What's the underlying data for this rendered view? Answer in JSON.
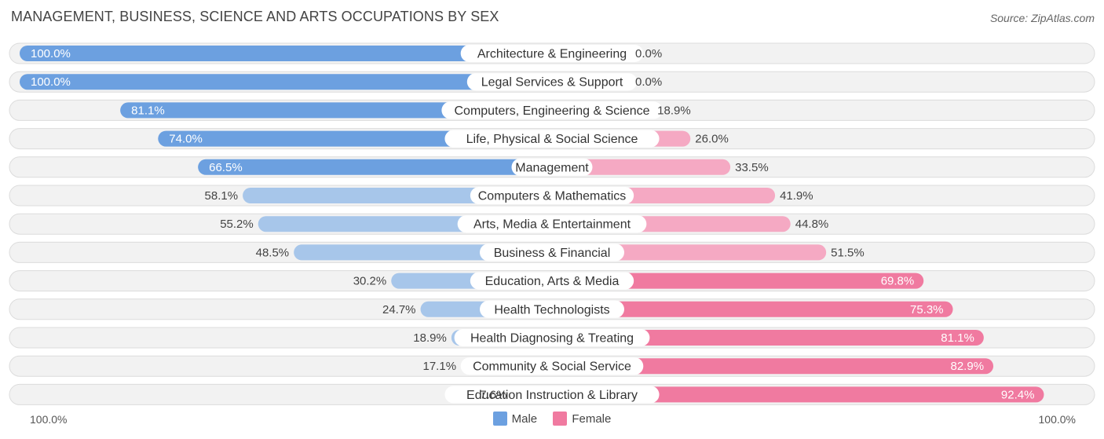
{
  "title": "MANAGEMENT, BUSINESS, SCIENCE AND ARTS OCCUPATIONS BY SEX",
  "source": "Source: ZipAtlas.com",
  "axis": {
    "left_label": "100.0%",
    "right_label": "100.0%"
  },
  "colors": {
    "male": "#6ca0e0",
    "male_light": "#a7c6ea",
    "female": "#f07aa0",
    "female_light": "#f5a9c3",
    "track": "#f2f2f2"
  },
  "chart_data": {
    "type": "bar",
    "orientation": "horizontal-diverging",
    "categories": [
      "Architecture & Engineering",
      "Legal Services & Support",
      "Computers, Engineering & Science",
      "Life, Physical & Social Science",
      "Management",
      "Computers & Mathematics",
      "Arts, Media & Entertainment",
      "Business & Financial",
      "Education, Arts & Media",
      "Health Technologists",
      "Health Diagnosing & Treating",
      "Community & Social Service",
      "Education Instruction & Library"
    ],
    "series": [
      {
        "name": "Male",
        "values": [
          100.0,
          100.0,
          81.1,
          74.0,
          66.5,
          58.1,
          55.2,
          48.5,
          30.2,
          24.7,
          18.9,
          17.1,
          7.6
        ],
        "labels": [
          "100.0%",
          "100.0%",
          "81.1%",
          "74.0%",
          "66.5%",
          "58.1%",
          "55.2%",
          "48.5%",
          "30.2%",
          "24.7%",
          "18.9%",
          "17.1%",
          "7.6%"
        ]
      },
      {
        "name": "Female",
        "values": [
          0.0,
          0.0,
          18.9,
          26.0,
          33.5,
          41.9,
          44.8,
          51.5,
          69.8,
          75.3,
          81.1,
          82.9,
          92.4
        ],
        "labels": [
          "0.0%",
          "0.0%",
          "18.9%",
          "26.0%",
          "33.5%",
          "41.9%",
          "44.8%",
          "51.5%",
          "69.8%",
          "75.3%",
          "81.1%",
          "82.9%",
          "92.4%"
        ]
      }
    ],
    "xlim": [
      0,
      100
    ],
    "legend": "bottom-center"
  }
}
